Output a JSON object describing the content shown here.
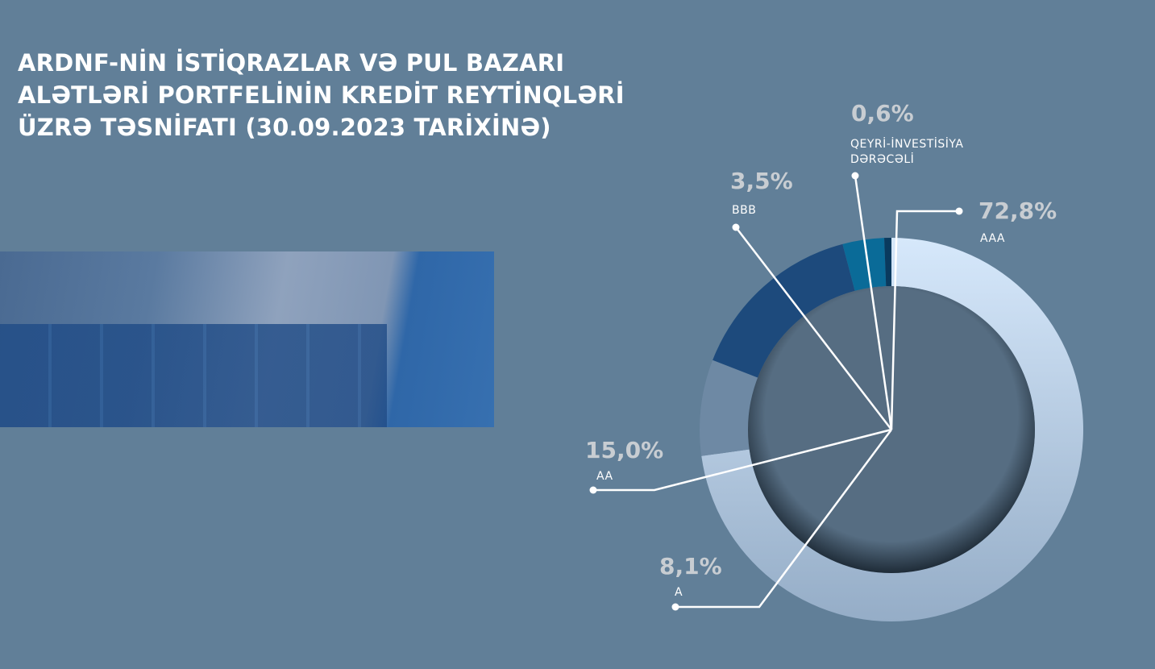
{
  "title_lines": [
    "ARDNF-NİN İSTİQRAZLAR VƏ PUL BAZARI",
    "ALƏTLƏRİ PORTFELİNİN KREDİT REYTİNQLƏRİ",
    "ÜZRƏ TƏSNİFATI (30.09.2023 TARİXİNƏ)"
  ],
  "chart_data": {
    "type": "pie",
    "title": "ARDNF-NİN İSTİQRAZLAR VƏ PUL BAZARI ALƏTLƏRİ PORTFELİNİN KREDİT REYTİNQLƏRİ ÜZRƏ TƏSNİFATI (30.09.2023 TARİXİNƏ)",
    "donut": true,
    "slices": [
      {
        "label": "AAA",
        "value": 72.8,
        "value_label": "72,8%",
        "color": "#c9def4"
      },
      {
        "label": "A",
        "value": 8.1,
        "value_label": "8,1%",
        "color": "#6e89a4"
      },
      {
        "label": "AA",
        "value": 15.0,
        "value_label": "15,0%",
        "color": "#1d4a7c"
      },
      {
        "label": "BBB",
        "value": 3.5,
        "value_label": "3,5%",
        "color": "#0a6b98"
      },
      {
        "label_lines": [
          "QEYRİ-İNVESTİSİYA",
          "DƏRƏCƏLİ"
        ],
        "label": "QEYRİ-İNVESTİSİYA DƏRƏCƏLİ",
        "value": 0.6,
        "value_label": "0,6%",
        "color": "#0a3a5e"
      }
    ]
  }
}
